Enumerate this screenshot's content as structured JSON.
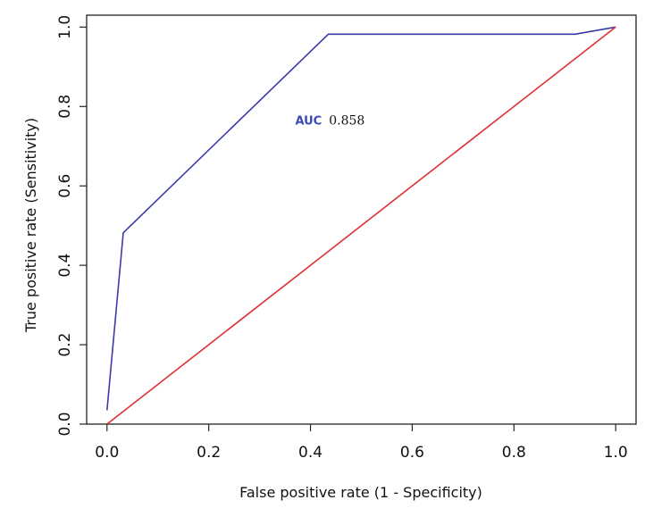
{
  "chart_data": {
    "type": "line",
    "xlabel": "False positive rate (1 - Specificity)",
    "ylabel": "True positive rate (Sensitivity)",
    "xlim": [
      -0.04,
      1.04
    ],
    "ylim": [
      0.0,
      1.03
    ],
    "x_ticks": [
      0.0,
      0.2,
      0.4,
      0.6,
      0.8,
      1.0
    ],
    "x_tick_labels": [
      "0.0",
      "0.2",
      "0.4",
      "0.6",
      "0.8",
      "1.0"
    ],
    "y_ticks": [
      0.0,
      0.2,
      0.4,
      0.6,
      0.8,
      1.0
    ],
    "y_tick_labels": [
      "0.0",
      "0.2",
      "0.4",
      "0.6",
      "0.8",
      "1.0"
    ],
    "grid": false,
    "series": [
      {
        "color": "#3a3aa8",
        "x": [
          0.0,
          0.032,
          0.435,
          0.92,
          1.0
        ],
        "y": [
          0.035,
          0.482,
          0.982,
          0.982,
          1.0
        ]
      },
      {
        "color": "#e03030",
        "x": [
          0.0,
          1.0
        ],
        "y": [
          0.0,
          1.0
        ]
      }
    ],
    "annotation": {
      "key": "AUC",
      "value": "0.858",
      "key_color": "#3a48b8",
      "at": {
        "x": 0.37,
        "y": 0.755
      }
    }
  }
}
